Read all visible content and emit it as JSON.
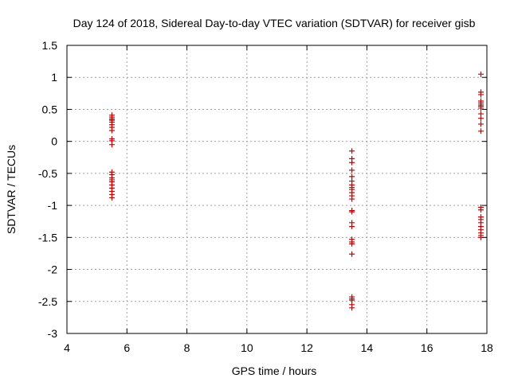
{
  "chart_data": {
    "type": "scatter",
    "title": "Day 124 of 2018, Sidereal Day-to-day VTEC variation (SDTVAR) for receiver gisb",
    "xlabel": "GPS time / hours",
    "ylabel": "SDTVAR / TECUs",
    "xlim": [
      4,
      18
    ],
    "ylim": [
      -3,
      1.5
    ],
    "xticks": [
      "4",
      "6",
      "8",
      "10",
      "12",
      "14",
      "16",
      "18"
    ],
    "yticks": [
      "-3",
      "-2.5",
      "-2",
      "-1.5",
      "-1",
      "-0.5",
      "0",
      "0.5",
      "1",
      "1.5"
    ],
    "grid": true,
    "marker": "+",
    "colors": {
      "points": "#cc0000",
      "grid": "#a0a0a0",
      "axis": "#000000"
    },
    "points": [
      {
        "x": 5.5,
        "y": 0.41
      },
      {
        "x": 5.5,
        "y": 0.38
      },
      {
        "x": 5.5,
        "y": 0.35
      },
      {
        "x": 5.5,
        "y": 0.33
      },
      {
        "x": 5.5,
        "y": 0.3
      },
      {
        "x": 5.5,
        "y": 0.26
      },
      {
        "x": 5.5,
        "y": 0.22
      },
      {
        "x": 5.5,
        "y": 0.17
      },
      {
        "x": 5.5,
        "y": 0.04
      },
      {
        "x": 5.5,
        "y": 0.01
      },
      {
        "x": 5.5,
        "y": -0.05
      },
      {
        "x": 5.5,
        "y": -0.48
      },
      {
        "x": 5.5,
        "y": -0.52
      },
      {
        "x": 5.5,
        "y": -0.57
      },
      {
        "x": 5.5,
        "y": -0.6
      },
      {
        "x": 5.5,
        "y": -0.63
      },
      {
        "x": 5.5,
        "y": -0.68
      },
      {
        "x": 5.5,
        "y": -0.73
      },
      {
        "x": 5.5,
        "y": -0.78
      },
      {
        "x": 5.5,
        "y": -0.83
      },
      {
        "x": 5.5,
        "y": -0.88
      },
      {
        "x": 13.5,
        "y": -0.15
      },
      {
        "x": 13.5,
        "y": -0.27
      },
      {
        "x": 13.5,
        "y": -0.33
      },
      {
        "x": 13.5,
        "y": -0.45
      },
      {
        "x": 13.5,
        "y": -0.55
      },
      {
        "x": 13.5,
        "y": -0.62
      },
      {
        "x": 13.5,
        "y": -0.68
      },
      {
        "x": 13.5,
        "y": -0.72
      },
      {
        "x": 13.5,
        "y": -0.75
      },
      {
        "x": 13.5,
        "y": -0.8
      },
      {
        "x": 13.5,
        "y": -0.85
      },
      {
        "x": 13.5,
        "y": -0.9
      },
      {
        "x": 13.5,
        "y": -1.08
      },
      {
        "x": 13.5,
        "y": -1.1
      },
      {
        "x": 13.5,
        "y": -1.27
      },
      {
        "x": 13.5,
        "y": -1.33
      },
      {
        "x": 13.5,
        "y": -1.53
      },
      {
        "x": 13.5,
        "y": -1.57
      },
      {
        "x": 13.5,
        "y": -1.6
      },
      {
        "x": 13.5,
        "y": -1.76
      },
      {
        "x": 13.5,
        "y": -2.43
      },
      {
        "x": 13.5,
        "y": -2.46
      },
      {
        "x": 13.5,
        "y": -2.48
      },
      {
        "x": 13.5,
        "y": -2.55
      },
      {
        "x": 13.5,
        "y": -2.6
      },
      {
        "x": 17.8,
        "y": 1.05
      },
      {
        "x": 17.8,
        "y": 0.77
      },
      {
        "x": 17.8,
        "y": 0.73
      },
      {
        "x": 17.8,
        "y": 0.63
      },
      {
        "x": 17.8,
        "y": 0.6
      },
      {
        "x": 17.8,
        "y": 0.57
      },
      {
        "x": 17.8,
        "y": 0.55
      },
      {
        "x": 17.8,
        "y": 0.52
      },
      {
        "x": 17.8,
        "y": 0.43
      },
      {
        "x": 17.8,
        "y": 0.36
      },
      {
        "x": 17.8,
        "y": 0.27
      },
      {
        "x": 17.8,
        "y": 0.16
      },
      {
        "x": 17.8,
        "y": -1.03
      },
      {
        "x": 17.8,
        "y": -1.07
      },
      {
        "x": 17.8,
        "y": -1.18
      },
      {
        "x": 17.8,
        "y": -1.22
      },
      {
        "x": 17.8,
        "y": -1.27
      },
      {
        "x": 17.8,
        "y": -1.33
      },
      {
        "x": 17.8,
        "y": -1.38
      },
      {
        "x": 17.8,
        "y": -1.43
      },
      {
        "x": 17.8,
        "y": -1.47
      },
      {
        "x": 17.8,
        "y": -1.5
      }
    ]
  }
}
